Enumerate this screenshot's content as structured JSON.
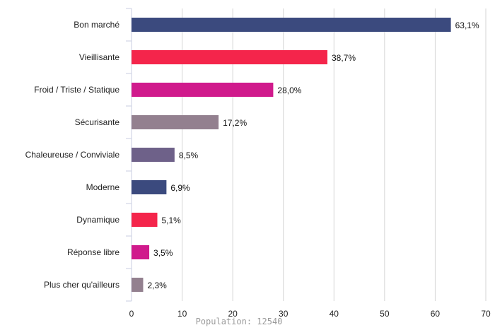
{
  "chart_data": {
    "type": "bar",
    "orientation": "horizontal",
    "categories": [
      "Bon marché",
      "Vieillisante",
      "Froid / Triste / Statique",
      "Sécurisante",
      "Chaleureuse / Conviviale",
      "Moderne",
      "Dynamique",
      "Réponse libre",
      "Plus cher qu'ailleurs"
    ],
    "values": [
      63.1,
      38.7,
      28.0,
      17.2,
      8.5,
      6.9,
      5.1,
      3.5,
      2.3
    ],
    "value_labels": [
      "63,1%",
      "38,7%",
      "28,0%",
      "17,2%",
      "8,5%",
      "6,9%",
      "5,1%",
      "3,5%",
      "2,3%"
    ],
    "colors": [
      "#3b4a7e",
      "#f4254b",
      "#d01a8c",
      "#93808f",
      "#6e6189",
      "#3b4a7e",
      "#f4254b",
      "#d01a8c",
      "#93808f"
    ],
    "xlim": [
      0,
      70
    ],
    "xticks": [
      0,
      10,
      20,
      30,
      40,
      50,
      60,
      70
    ],
    "grid": true,
    "legend": "none"
  },
  "footer": {
    "population_label": "Population: 12540"
  }
}
